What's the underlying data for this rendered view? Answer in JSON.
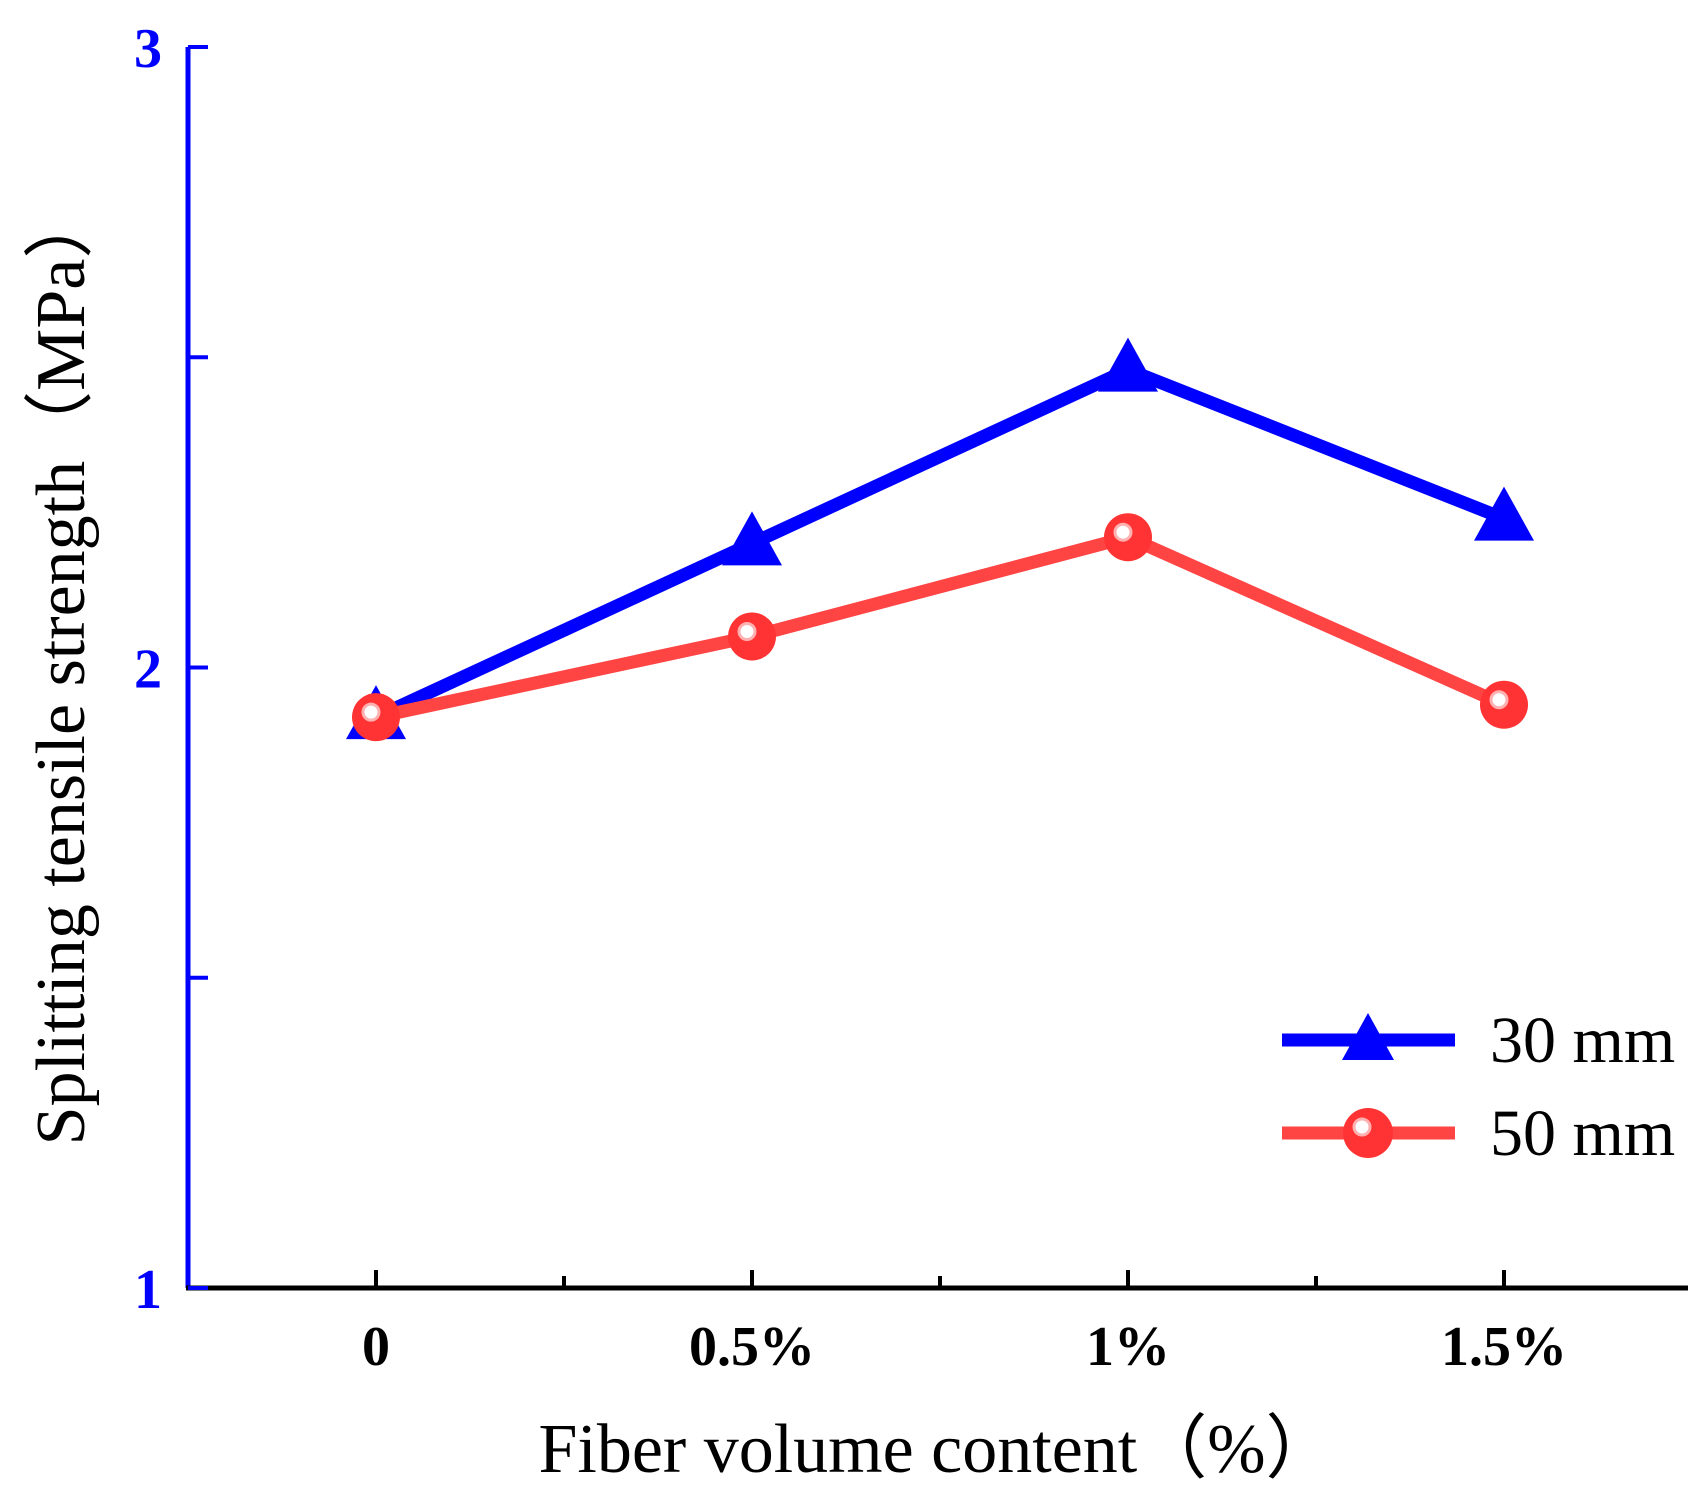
{
  "chart_data": {
    "type": "line",
    "title": "",
    "xlabel": "Fiber volume content（%）",
    "ylabel": "Splitting tensile strength（MPa）",
    "categories": [
      "0",
      "0.5%",
      "1%",
      "1.5%"
    ],
    "yticks": [
      "1",
      "2",
      "3"
    ],
    "ylim": [
      1,
      3
    ],
    "legend_position": "lower-right",
    "series": [
      {
        "name": "30 mm",
        "marker": "triangle",
        "color": "#0000ff",
        "values": [
          1.92,
          2.2,
          2.48,
          2.24
        ]
      },
      {
        "name": "50 mm",
        "marker": "circle",
        "color": "#ff4444",
        "values": [
          1.92,
          2.05,
          2.21,
          1.94
        ]
      }
    ],
    "axis_color": "#0000ff"
  }
}
